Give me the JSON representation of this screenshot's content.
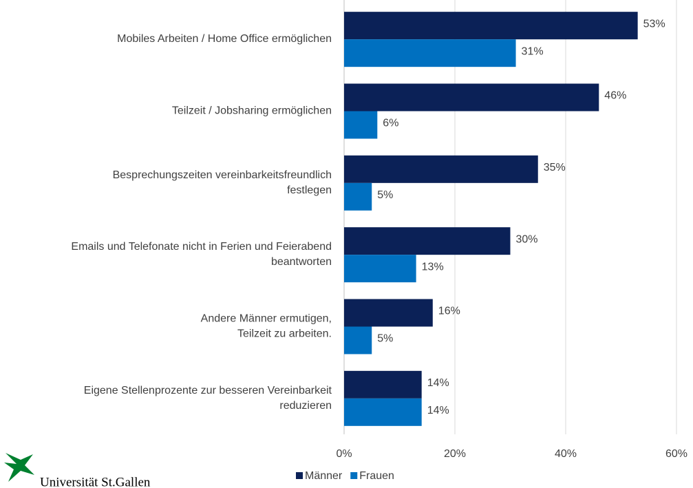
{
  "chart_data": {
    "type": "hbar",
    "categories": [
      "Mobiles Arbeiten / Home Office ermöglichen",
      "Teilzeit / Jobsharing ermöglichen",
      "Besprechungszeiten vereinbarkeitsfreundlich\nfestlegen",
      "Emails und Telefonate nicht in Ferien und Feierabend\nbeantworten",
      "Andere Männer ermutigen,\nTeilzeit zu arbeiten.",
      "Eigene Stellenprozente zur besseren Vereinbarkeit\nreduzieren"
    ],
    "series": [
      {
        "name": "Männer",
        "color": "#0b2157",
        "values": [
          53,
          46,
          35,
          30,
          16,
          14
        ],
        "value_labels": [
          "53%",
          "46%",
          "35%",
          "30%",
          "16%",
          "14%"
        ]
      },
      {
        "name": "Frauen",
        "color": "#0070c0",
        "values": [
          31,
          6,
          5,
          13,
          5,
          14
        ],
        "value_labels": [
          "31%",
          "6%",
          "5%",
          "13%",
          "5%",
          "14%"
        ]
      }
    ],
    "xlim": [
      0,
      60
    ],
    "xticks": [
      {
        "value": 0,
        "label": "0%"
      },
      {
        "value": 20,
        "label": "20%"
      },
      {
        "value": 40,
        "label": "40%"
      },
      {
        "value": 60,
        "label": "60%"
      }
    ],
    "grid": true,
    "legend": "bottom"
  },
  "logo": {
    "text": "Universität St.Gallen"
  }
}
